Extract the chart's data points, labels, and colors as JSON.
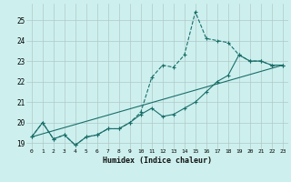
{
  "xlabel": "Humidex (Indice chaleur)",
  "bg_color": "#cdf0ee",
  "grid_color": "#b0c8c8",
  "line_color": "#1a6e6a",
  "xlim": [
    -0.5,
    23.5
  ],
  "ylim": [
    18.7,
    25.8
  ],
  "xticks": [
    0,
    1,
    2,
    3,
    4,
    5,
    6,
    7,
    8,
    9,
    10,
    11,
    12,
    13,
    14,
    15,
    16,
    17,
    18,
    19,
    20,
    21,
    22,
    23
  ],
  "yticks": [
    19,
    20,
    21,
    22,
    23,
    24,
    25
  ],
  "series": [
    {
      "x": [
        0,
        1,
        2,
        3,
        4,
        5,
        6,
        7,
        8,
        9,
        10,
        11,
        12,
        13,
        14,
        15,
        16,
        17,
        18,
        19,
        20,
        21,
        22,
        23
      ],
      "y": [
        19.3,
        20.0,
        19.2,
        19.4,
        18.9,
        19.3,
        19.4,
        19.7,
        19.7,
        20.0,
        20.5,
        22.2,
        22.8,
        22.7,
        23.3,
        25.4,
        24.1,
        24.0,
        23.9,
        23.3,
        23.0,
        23.0,
        22.8,
        22.8
      ],
      "linestyle": "--",
      "marker": "+"
    },
    {
      "x": [
        0,
        1,
        2,
        3,
        4,
        5,
        6,
        7,
        8,
        9,
        10,
        11,
        12,
        13,
        14,
        15,
        16,
        17,
        18,
        19,
        20,
        21,
        22,
        23
      ],
      "y": [
        19.3,
        20.0,
        19.2,
        19.4,
        18.9,
        19.3,
        19.4,
        19.7,
        19.7,
        20.0,
        20.4,
        20.7,
        20.3,
        20.4,
        20.7,
        21.0,
        21.5,
        22.0,
        22.3,
        23.3,
        23.0,
        23.0,
        22.8,
        22.8
      ],
      "linestyle": "-",
      "marker": "+"
    },
    {
      "x": [
        0,
        23
      ],
      "y": [
        19.3,
        22.8
      ],
      "linestyle": "-",
      "marker": "none"
    }
  ]
}
